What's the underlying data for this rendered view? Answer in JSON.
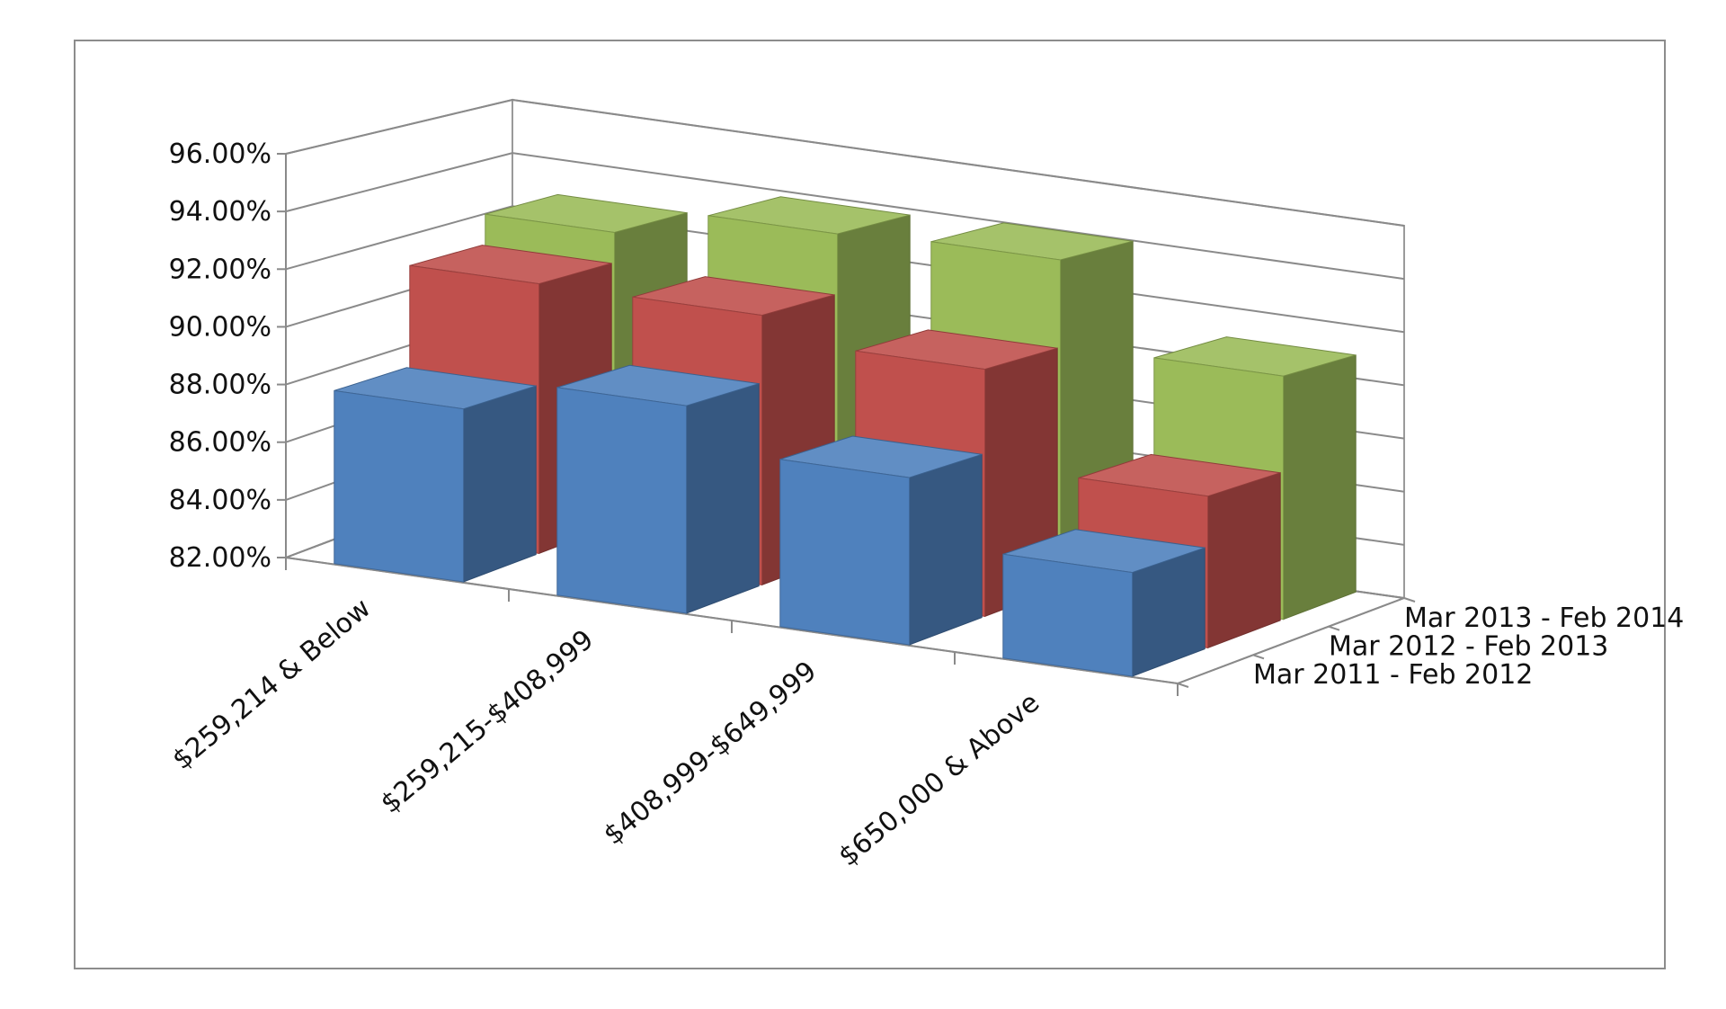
{
  "chart_data": {
    "type": "bar",
    "subtype": "3d-column",
    "title": "",
    "xlabel": "",
    "ylabel": "",
    "categories": [
      "$259,214 & Below",
      "$259,215-$408,999",
      "$408,999-$649,999",
      "$650,000 & Above"
    ],
    "series": [
      {
        "name": "Mar 2011 - Feb 2012",
        "values": [
          88.0,
          89.2,
          87.8,
          85.6
        ],
        "color": "#4f81bd"
      },
      {
        "name": "Mar 2012 - Feb 2013",
        "values": [
          91.6,
          91.6,
          90.8,
          87.4
        ],
        "color": "#c0504d"
      },
      {
        "name": "Mar 2013 - Feb 2014",
        "values": [
          92.7,
          93.8,
          94.0,
          90.9
        ],
        "color": "#9bbb59"
      }
    ],
    "ylim": [
      82,
      96
    ],
    "yticks": [
      "82.00%",
      "84.00%",
      "86.00%",
      "88.00%",
      "90.00%",
      "92.00%",
      "94.00%",
      "96.00%"
    ],
    "grid": true,
    "legend": "depth-axis labels on right"
  }
}
